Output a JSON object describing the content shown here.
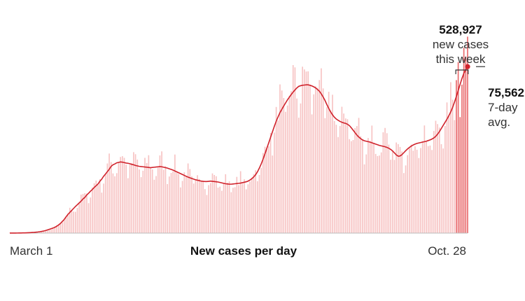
{
  "chart_data": {
    "type": "bar",
    "title": "",
    "xlabel": "New cases per day",
    "ylabel": "",
    "x_tick_labels": [
      "March 1",
      "Oct. 28"
    ],
    "start_date": "2020-03-01",
    "end_date": "2020-10-28",
    "series": [
      {
        "name": "",
        "kind": "bar",
        "color": "#f7c3c3",
        "recent_color": "#e8686b"
      },
      {
        "name": "7-day avg.",
        "kind": "line",
        "color": "#d0222b"
      }
    ],
    "daily_new_cases": [
      30,
      31,
      33,
      35,
      42,
      45,
      60,
      85,
      110,
      140,
      180,
      230,
      290,
      350,
      430,
      520,
      640,
      780,
      950,
      1150,
      1420,
      1700,
      2000,
      2300,
      2600,
      3100,
      3700,
      4400,
      5300,
      6200,
      7400,
      8500,
      9400,
      10300,
      11200,
      12100,
      12900,
      13700,
      14500,
      15500,
      16200,
      17300,
      18100,
      19000,
      19800,
      20700,
      21500,
      22300,
      23500,
      24500,
      25800,
      26800,
      27900,
      29000,
      30300,
      31000,
      31400,
      31900,
      32100,
      32300,
      32200,
      32000,
      31800,
      31700,
      31500,
      31200,
      31000,
      30700,
      30500,
      30300,
      30200,
      30100,
      30000,
      29900,
      29800,
      29700,
      29800,
      29900,
      30000,
      30100,
      30200,
      30100,
      29900,
      29700,
      29500,
      29200,
      28900,
      28600,
      28200,
      27800,
      27400,
      27000,
      26600,
      26200,
      25800,
      25400,
      25100,
      24800,
      24500,
      24200,
      24000,
      23800,
      23600,
      23500,
      23400,
      23400,
      23500,
      23600,
      23500,
      23400,
      23300,
      23200,
      23000,
      22800,
      22600,
      22400,
      22300,
      22200,
      22200,
      22300,
      22400,
      22500,
      22600,
      22700,
      22900,
      23100,
      23300,
      23600,
      24100,
      24700,
      25500,
      26500,
      27800,
      29500,
      31400,
      33600,
      36000,
      38500,
      41000,
      43500,
      46000,
      48500,
      50800,
      52800,
      54700,
      56200,
      57700,
      59100,
      60500,
      61700,
      62900,
      64000,
      65000,
      65900,
      66600,
      66900,
      67100,
      67200,
      67300,
      67300,
      67100,
      66800,
      66400,
      65900,
      65200,
      64400,
      63200,
      61800,
      60200,
      58300,
      56600,
      55000,
      53700,
      52600,
      51800,
      51200,
      50700,
      50300,
      50000,
      49800,
      49400,
      48800,
      47800,
      46700,
      45600,
      44500,
      43600,
      42900,
      42300,
      41900,
      41700,
      41500,
      41300,
      41000,
      40700,
      40400,
      40100,
      39800,
      39600,
      39400,
      39200,
      38900,
      38500,
      38000,
      37300,
      36400,
      35500,
      34900,
      35000,
      35600,
      36500,
      37400,
      38200,
      38900,
      39500,
      40000,
      40400,
      40700,
      40900,
      41100,
      41300,
      41500,
      41700,
      42000,
      42300,
      42700,
      43200,
      43900,
      44900,
      46100,
      47500,
      48900,
      50300,
      51700,
      53300,
      55000,
      57000,
      59400,
      62000,
      64700,
      67500,
      70200,
      72500,
      74200,
      75562
    ],
    "recent_week_bar_count": 7,
    "annotation_week": {
      "value": "528,927",
      "line1": "new cases",
      "line2": "this week"
    },
    "annotation_avg": {
      "value": "75,562",
      "line1": "7-day",
      "line2": "avg."
    },
    "ylim": [
      0,
      95000
    ],
    "grid": false,
    "legend": "none"
  }
}
